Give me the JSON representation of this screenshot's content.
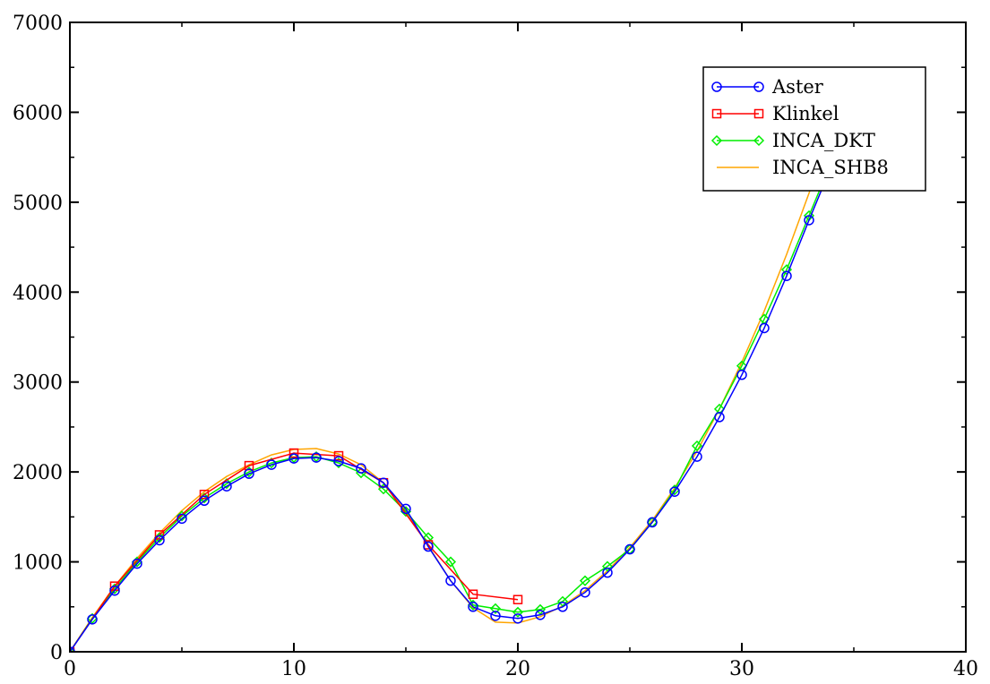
{
  "chart_data": {
    "type": "line",
    "title": "",
    "xlabel": "",
    "ylabel": "",
    "xlim": [
      0,
      40
    ],
    "ylim": [
      0,
      7000
    ],
    "xticks": [
      0,
      10,
      20,
      30,
      40
    ],
    "yticks": [
      0,
      1000,
      2000,
      3000,
      4000,
      5000,
      6000,
      7000
    ],
    "x_tick_labels": [
      "0",
      "10",
      "20",
      "30",
      "40"
    ],
    "y_tick_labels": [
      "0",
      "1000",
      "2000",
      "3000",
      "4000",
      "5000",
      "6000",
      "7000"
    ],
    "grid": false,
    "legend_position": "top-right",
    "series": [
      {
        "name": "Aster",
        "color": "#0000ff",
        "marker": "circle",
        "x": [
          0,
          1,
          2,
          3,
          4,
          5,
          6,
          7,
          8,
          9,
          10,
          11,
          12,
          13,
          14,
          15,
          16,
          17,
          18,
          19,
          20,
          21,
          22,
          23,
          24,
          25,
          26,
          27,
          28,
          29,
          30,
          31,
          32,
          33,
          34
        ],
        "y": [
          0,
          360,
          680,
          980,
          1240,
          1480,
          1680,
          1840,
          1980,
          2080,
          2150,
          2160,
          2120,
          2040,
          1880,
          1590,
          1170,
          790,
          500,
          400,
          370,
          410,
          500,
          660,
          880,
          1140,
          1440,
          1780,
          2170,
          2610,
          3080,
          3600,
          4180,
          4800,
          5400
        ]
      },
      {
        "name": "Klinkel",
        "color": "#ff0000",
        "marker": "square",
        "x": [
          0,
          2,
          4,
          6,
          8,
          10,
          12,
          14,
          16,
          18,
          20
        ],
        "y": [
          0,
          730,
          1300,
          1750,
          2070,
          2210,
          2180,
          1880,
          1190,
          640,
          580
        ]
      },
      {
        "name": "INCA_DKT",
        "color": "#00ee00",
        "marker": "diamond",
        "x": [
          0,
          1,
          2,
          3,
          4,
          5,
          6,
          7,
          8,
          9,
          10,
          11,
          12,
          13,
          14,
          15,
          16,
          17,
          18,
          19,
          20,
          21,
          22,
          23,
          24,
          25,
          26,
          27,
          28,
          29,
          30,
          31,
          32,
          33,
          34
        ],
        "y": [
          0,
          370,
          700,
          1000,
          1270,
          1510,
          1710,
          1870,
          2000,
          2100,
          2160,
          2170,
          2100,
          1990,
          1810,
          1560,
          1270,
          1000,
          520,
          480,
          440,
          470,
          560,
          790,
          950,
          1140,
          1440,
          1800,
          2290,
          2700,
          3180,
          3700,
          4250,
          4850,
          5450
        ]
      },
      {
        "name": "INCA_SHB8",
        "color": "#ffa500",
        "marker": "none",
        "x": [
          0,
          1,
          2,
          3,
          4,
          5,
          6,
          7,
          8,
          9,
          10,
          11,
          12,
          13,
          14,
          15,
          16,
          17,
          18,
          19,
          20,
          21,
          22,
          23,
          24,
          25,
          26,
          27,
          28,
          29,
          30,
          31,
          32,
          33,
          34
        ],
        "y": [
          0,
          380,
          730,
          1040,
          1320,
          1570,
          1780,
          1950,
          2080,
          2190,
          2250,
          2260,
          2200,
          2080,
          1880,
          1570,
          1180,
          790,
          490,
          330,
          320,
          390,
          510,
          680,
          900,
          1160,
          1460,
          1820,
          2230,
          2700,
          3220,
          3790,
          4420,
          5100,
          5800
        ]
      }
    ]
  }
}
